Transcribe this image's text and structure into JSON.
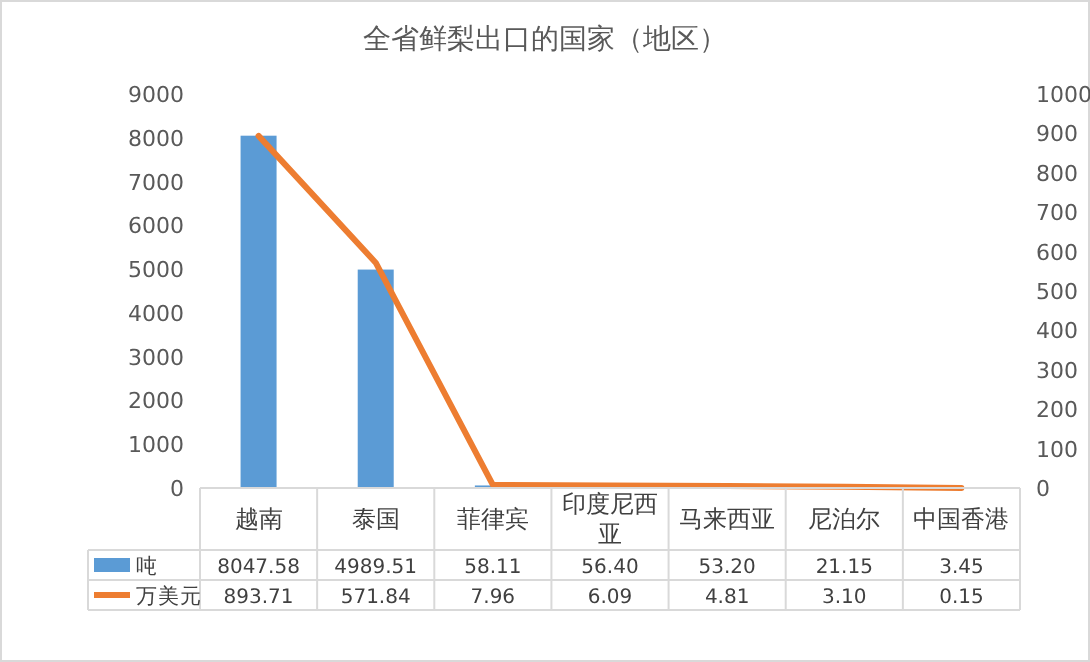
{
  "chart_data": {
    "type": "bar",
    "title": "全省鲜梨出口的国家（地区）",
    "categories": [
      "越南",
      "泰国",
      "菲律宾",
      "印度尼西亚",
      "马来西亚",
      "尼泊尔",
      "中国香港"
    ],
    "series": [
      {
        "name": "吨",
        "color": "#5b9bd5",
        "values": [
          8047.58,
          4989.51,
          58.11,
          56.4,
          53.2,
          21.15,
          3.45
        ],
        "value_labels": [
          "8047.58",
          "4989.51",
          "58.11",
          "56.40",
          "53.20",
          "21.15",
          "3.45"
        ]
      },
      {
        "name": "万美元",
        "type": "line",
        "axis": "y2",
        "color": "#ed7d31",
        "values": [
          893.71,
          571.84,
          7.96,
          6.09,
          4.81,
          3.1,
          0.15
        ],
        "value_labels": [
          "893.71",
          "571.84",
          "7.96",
          "6.09",
          "4.81",
          "3.10",
          "0.15"
        ]
      }
    ],
    "ylim": [
      0,
      9000
    ],
    "yticks": [
      0,
      1000,
      2000,
      3000,
      4000,
      5000,
      6000,
      7000,
      8000,
      9000
    ],
    "y2lim": [
      0,
      1000
    ],
    "y2ticks": [
      0,
      100,
      200,
      300,
      400,
      500,
      600,
      700,
      800,
      900,
      1000
    ],
    "legend": "bottom",
    "grid": false
  }
}
